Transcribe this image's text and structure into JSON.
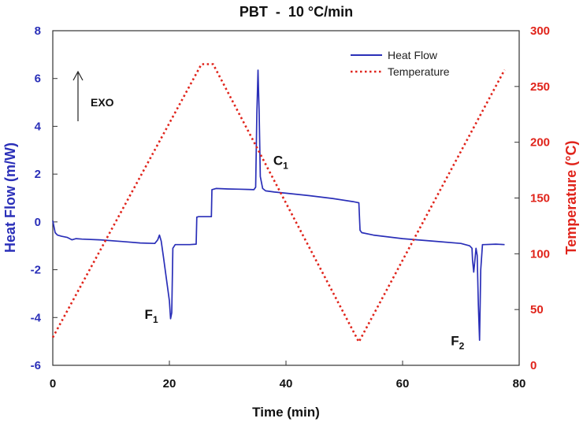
{
  "chart_data": {
    "type": "line",
    "title": "PBT  -  10 °C/min",
    "xlabel": "Time (min)",
    "ylabel_left": "Heat Flow (m/W)",
    "ylabel_right": "Temperature (°C)",
    "xlim": [
      0,
      80
    ],
    "ylim_left": [
      -6,
      8
    ],
    "ylim_right": [
      0,
      300
    ],
    "x_ticks": [
      "0",
      "20",
      "40",
      "60",
      "80"
    ],
    "y_left_ticks": [
      "-6",
      "-4",
      "-2",
      "0",
      "2",
      "4",
      "6",
      "8"
    ],
    "y_right_ticks": [
      "0",
      "50",
      "100",
      "150",
      "200",
      "250",
      "300"
    ],
    "legend": {
      "position": "top-right",
      "entries": [
        "Heat Flow",
        "Temperature"
      ]
    },
    "colors": {
      "heat_flow": "#2a2fb8",
      "temperature": "#e0241b"
    },
    "exo_label": "EXO",
    "series": [
      {
        "name": "Heat Flow",
        "axis": "left",
        "style": "solid",
        "x": [
          0,
          0.2,
          0.4,
          0.8,
          1.5,
          2.5,
          3.3,
          4.0,
          5,
          8,
          12,
          15,
          17.5,
          18.0,
          18.3,
          18.6,
          19.0,
          19.5,
          20.0,
          20.2,
          20.4,
          20.6,
          21.0,
          22,
          23.5,
          24.6,
          24.7,
          25,
          26,
          27.2,
          27.3,
          28,
          30,
          32,
          33.5,
          34.5,
          34.8,
          35.0,
          35.2,
          35.4,
          35.6,
          36.0,
          36.5,
          38,
          40,
          44,
          48,
          51.5,
          52.5,
          52.7,
          53.0,
          55,
          60,
          65,
          70,
          71.5,
          71.9,
          72.0,
          72.2,
          72.4,
          72.6,
          72.8,
          73.0,
          73.2,
          73.4,
          73.7,
          74,
          76,
          77.5
        ],
        "values": [
          0.05,
          -0.2,
          -0.45,
          -0.55,
          -0.6,
          -0.65,
          -0.75,
          -0.7,
          -0.72,
          -0.75,
          -0.82,
          -0.88,
          -0.9,
          -0.75,
          -0.55,
          -0.8,
          -1.5,
          -2.4,
          -3.3,
          -4.05,
          -3.8,
          -1.1,
          -0.95,
          -0.95,
          -0.95,
          -0.93,
          0.2,
          0.22,
          0.22,
          0.22,
          1.35,
          1.4,
          1.38,
          1.37,
          1.36,
          1.35,
          1.45,
          4.5,
          6.35,
          4.5,
          1.9,
          1.4,
          1.3,
          1.25,
          1.2,
          1.1,
          0.98,
          0.85,
          0.8,
          -0.35,
          -0.45,
          -0.55,
          -0.7,
          -0.8,
          -0.9,
          -1.0,
          -1.1,
          -1.6,
          -2.1,
          -1.6,
          -1.1,
          -1.4,
          -3.5,
          -4.95,
          -2.0,
          -0.95,
          -0.95,
          -0.93,
          -0.95
        ]
      },
      {
        "name": "Temperature",
        "axis": "right",
        "style": "dotted",
        "x": [
          0,
          25.5,
          27.5,
          52.5,
          77.5
        ],
        "values": [
          25,
          270,
          270,
          21,
          265
        ]
      }
    ],
    "annotations": [
      {
        "label": "F",
        "sub": "1",
        "x": 19.4,
        "y": -4.05
      },
      {
        "label": "C",
        "sub": "1",
        "x": 38.5,
        "y": 2.45
      },
      {
        "label": "F",
        "sub": "2",
        "x": 72.2,
        "y": -4.9
      }
    ]
  }
}
